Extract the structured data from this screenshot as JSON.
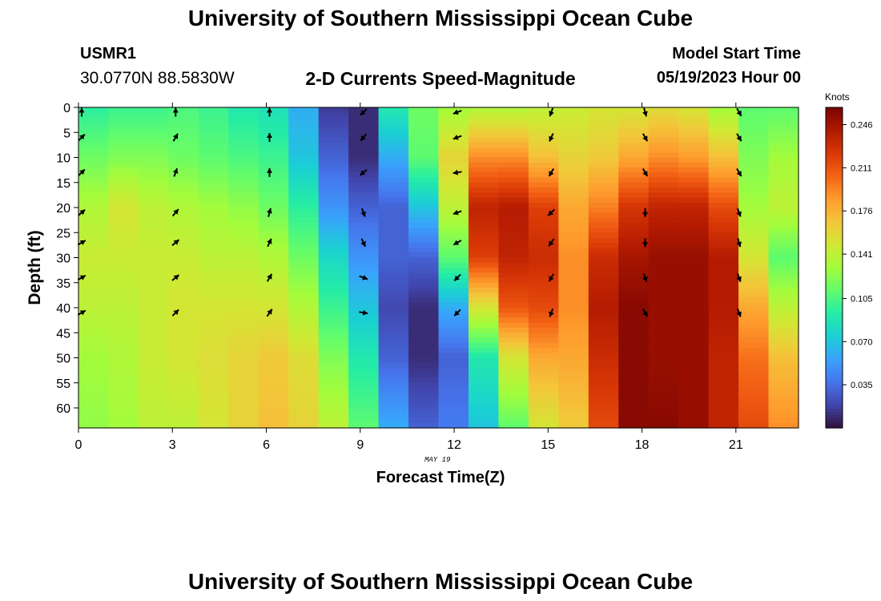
{
  "page": {
    "title": "University of Southern Mississippi Ocean Cube",
    "footer_title": "University of Southern Mississippi Ocean Cube"
  },
  "station": {
    "id": "USMR1",
    "coords": "30.0770N  88.5830W"
  },
  "model": {
    "label": "Model Start Time",
    "start": "05/19/2023 Hour 00"
  },
  "chart_data": {
    "type": "heatmap",
    "title": "2-D Currents Speed-Magnitude",
    "xlabel": "Forecast Time(Z)",
    "ylabel": "Depth (ft)",
    "date_label": "MAY 19",
    "x_ticks": [
      0,
      3,
      6,
      9,
      12,
      15,
      18,
      21
    ],
    "y_ticks": [
      0,
      5,
      10,
      15,
      20,
      25,
      30,
      35,
      40,
      45,
      50,
      55,
      60
    ],
    "xlim": [
      0,
      23
    ],
    "ylim": [
      0,
      64
    ],
    "colorbar": {
      "unit": "Knots",
      "range": [
        0.0,
        0.26
      ],
      "ticks": [
        "0.246",
        "0.211",
        "0.176",
        "0.141",
        "0.105",
        "0.070",
        "0.035"
      ],
      "colors": [
        "#30123b",
        "#4145ab",
        "#4675ed",
        "#39a2fc",
        "#1bcfd4",
        "#24eca6",
        "#61fc6c",
        "#a4fc3b",
        "#d1e834",
        "#f3c63a",
        "#fe9b2d",
        "#f36315",
        "#d93806",
        "#b11901",
        "#7a0402"
      ]
    },
    "hours": [
      0,
      1,
      2,
      3,
      4,
      5,
      6,
      7,
      8,
      9,
      10,
      11,
      12,
      13,
      14,
      15,
      16,
      17,
      18,
      19,
      20,
      21,
      22,
      23
    ],
    "depth_levels_ft": [
      0,
      16,
      32,
      48,
      64
    ],
    "speed_knots": [
      [
        0.095,
        0.115,
        0.135,
        0.145,
        0.14,
        0.13,
        0.125
      ],
      [
        0.1,
        0.12,
        0.15,
        0.145,
        0.14,
        0.135,
        0.13
      ],
      [
        0.1,
        0.12,
        0.14,
        0.145,
        0.145,
        0.145,
        0.14
      ],
      [
        0.105,
        0.115,
        0.135,
        0.145,
        0.15,
        0.15,
        0.14
      ],
      [
        0.1,
        0.11,
        0.13,
        0.14,
        0.15,
        0.155,
        0.15
      ],
      [
        0.09,
        0.105,
        0.125,
        0.14,
        0.15,
        0.16,
        0.16
      ],
      [
        0.085,
        0.1,
        0.115,
        0.135,
        0.15,
        0.165,
        0.17
      ],
      [
        0.06,
        0.07,
        0.095,
        0.115,
        0.135,
        0.155,
        0.16
      ],
      [
        0.015,
        0.03,
        0.05,
        0.08,
        0.1,
        0.12,
        0.14
      ],
      [
        0.01,
        0.01,
        0.03,
        0.05,
        0.07,
        0.09,
        0.11
      ],
      [
        0.09,
        0.06,
        0.03,
        0.03,
        0.02,
        0.03,
        0.06
      ],
      [
        0.115,
        0.11,
        0.07,
        0.03,
        0.01,
        0.01,
        0.03
      ],
      [
        0.13,
        0.16,
        0.14,
        0.11,
        0.06,
        0.03,
        0.04
      ],
      [
        0.135,
        0.19,
        0.235,
        0.22,
        0.15,
        0.09,
        0.07
      ],
      [
        0.135,
        0.19,
        0.24,
        0.235,
        0.21,
        0.15,
        0.11
      ],
      [
        0.14,
        0.17,
        0.22,
        0.23,
        0.215,
        0.18,
        0.15
      ],
      [
        0.145,
        0.16,
        0.18,
        0.19,
        0.19,
        0.18,
        0.165
      ],
      [
        0.15,
        0.165,
        0.195,
        0.23,
        0.24,
        0.23,
        0.215
      ],
      [
        0.15,
        0.18,
        0.225,
        0.245,
        0.255,
        0.255,
        0.255
      ],
      [
        0.155,
        0.19,
        0.235,
        0.25,
        0.25,
        0.25,
        0.255
      ],
      [
        0.15,
        0.185,
        0.235,
        0.25,
        0.25,
        0.25,
        0.25
      ],
      [
        0.13,
        0.17,
        0.215,
        0.24,
        0.24,
        0.235,
        0.235
      ],
      [
        0.11,
        0.12,
        0.13,
        0.15,
        0.18,
        0.2,
        0.215
      ],
      [
        0.11,
        0.13,
        0.14,
        0.11,
        0.14,
        0.17,
        0.19
      ]
    ],
    "speed_depth_levels_ft": [
      0,
      10,
      20,
      30,
      40,
      50,
      64
    ],
    "vectors": {
      "hours": [
        0,
        3,
        6,
        9,
        12,
        15,
        18,
        21
      ],
      "depths_ft": [
        6,
        13,
        21,
        27,
        34,
        41
      ],
      "directions_deg": [
        [
          45,
          45,
          50,
          60,
          60,
          60
        ],
        [
          30,
          20,
          40,
          50,
          50,
          45
        ],
        [
          0,
          0,
          15,
          25,
          30,
          35
        ],
        [
          220,
          230,
          160,
          155,
          110,
          100
        ],
        [
          250,
          260,
          250,
          240,
          225,
          225
        ],
        [
          205,
          210,
          225,
          215,
          210,
          200
        ],
        [
          150,
          150,
          180,
          180,
          160,
          150
        ],
        [
          150,
          150,
          160,
          165,
          160,
          160
        ]
      ],
      "top_directions_deg": [
        0,
        0,
        0,
        225,
        250,
        200,
        165,
        150
      ]
    }
  }
}
